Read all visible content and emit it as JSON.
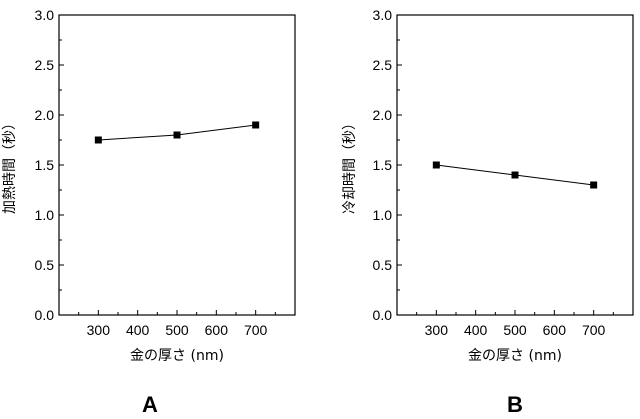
{
  "chart_data": [
    {
      "type": "line",
      "panel_label": "A",
      "xlabel": "金の厚さ (nm)",
      "ylabel": "加熱時間（秒）",
      "x": [
        300,
        500,
        700
      ],
      "y": [
        1.75,
        1.8,
        1.9
      ],
      "xlim": [
        200,
        800
      ],
      "ylim": [
        0.0,
        3.0
      ],
      "xticks": [
        "300",
        "400",
        "500",
        "600",
        "700"
      ],
      "yticks": [
        "0.0",
        "0.5",
        "1.0",
        "1.5",
        "2.0",
        "2.5",
        "3.0"
      ],
      "marker": "square",
      "color": "#000000",
      "grid": false
    },
    {
      "type": "line",
      "panel_label": "B",
      "xlabel": "金の厚さ (nm)",
      "ylabel": "冷却時間（秒）",
      "x": [
        300,
        500,
        700
      ],
      "y": [
        1.5,
        1.4,
        1.3
      ],
      "xlim": [
        200,
        800
      ],
      "ylim": [
        0.0,
        3.0
      ],
      "xticks": [
        "300",
        "400",
        "500",
        "600",
        "700"
      ],
      "yticks": [
        "0.0",
        "0.5",
        "1.0",
        "1.5",
        "2.0",
        "2.5",
        "3.0"
      ],
      "marker": "square",
      "color": "#000000",
      "grid": false
    }
  ]
}
